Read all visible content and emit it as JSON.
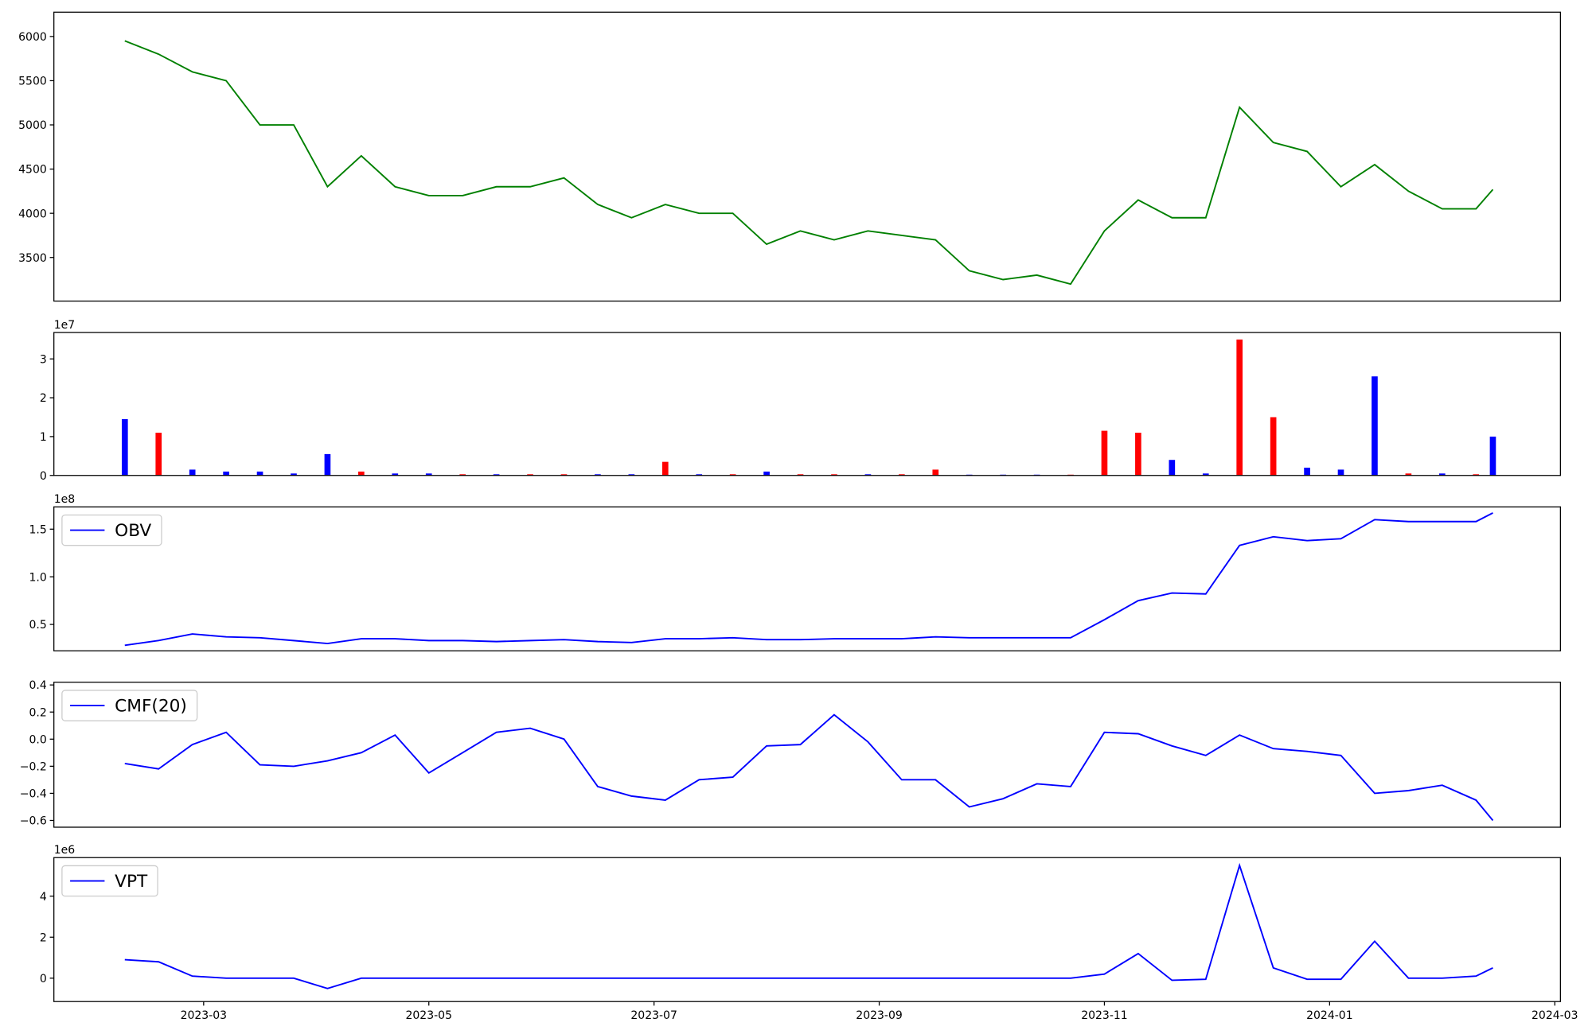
{
  "chart_data": [
    {
      "type": "line",
      "x": [
        -0.7,
        -0.4,
        -0.1,
        0.2,
        0.5,
        0.8,
        1.1,
        1.4,
        1.7,
        2.0,
        2.3,
        2.6,
        2.9,
        3.2,
        3.5,
        3.8,
        4.1,
        4.4,
        4.7,
        5.0,
        5.3,
        5.6,
        5.9,
        6.2,
        6.5,
        6.8,
        7.1,
        7.4,
        7.7,
        8.0,
        8.3,
        8.6,
        8.9,
        9.2,
        9.5,
        9.8,
        10.1,
        10.4,
        10.7,
        11.0,
        11.3,
        11.45
      ],
      "xlim": [
        -1.33,
        12.05
      ],
      "ylim": [
        3007,
        6275
      ],
      "yticks": [
        3500,
        4000,
        4500,
        5000,
        5500,
        6000
      ],
      "series": [
        {
          "color": "#008000",
          "values": [
            5950,
            5800,
            5600,
            5500,
            5000,
            5000,
            4300,
            4650,
            4300,
            4200,
            4200,
            4300,
            4300,
            4400,
            4100,
            3950,
            4100,
            4000,
            4000,
            3650,
            3800,
            3700,
            3800,
            3750,
            3700,
            3350,
            3250,
            3300,
            3200,
            3800,
            4150,
            3950,
            3950,
            5200,
            4800,
            4700,
            4300,
            4550,
            4250,
            4050,
            4050,
            4270
          ]
        }
      ]
    },
    {
      "type": "bar",
      "x": [
        -0.7,
        -0.4,
        -0.1,
        0.2,
        0.5,
        0.8,
        1.1,
        1.4,
        1.7,
        2.0,
        2.3,
        2.6,
        2.9,
        3.2,
        3.5,
        3.8,
        4.1,
        4.4,
        4.7,
        5.0,
        5.3,
        5.6,
        5.9,
        6.2,
        6.5,
        6.8,
        7.1,
        7.4,
        7.7,
        8.0,
        8.3,
        8.6,
        8.9,
        9.2,
        9.5,
        9.8,
        10.1,
        10.4,
        10.7,
        11.0,
        11.3,
        11.45
      ],
      "xlim": [
        -1.33,
        12.05
      ],
      "ylim": [
        0,
        36800000
      ],
      "y_offset_label": "1e7",
      "yticks": [
        0,
        {
          "value": 10000000,
          "label": "1"
        },
        {
          "value": 20000000,
          "label": "2"
        },
        {
          "value": 30000000,
          "label": "3"
        }
      ],
      "values": [
        14500000,
        11000000,
        1500000,
        1000000,
        1000000,
        500000,
        5500000,
        1000000,
        500000,
        500000,
        300000,
        300000,
        300000,
        300000,
        300000,
        300000,
        3500000,
        300000,
        300000,
        1000000,
        300000,
        300000,
        300000,
        300000,
        1500000,
        200000,
        200000,
        200000,
        200000,
        11500000,
        11000000,
        4000000,
        500000,
        35000000,
        15000000,
        2000000,
        1500000,
        25500000,
        500000,
        500000,
        300000,
        10000000
      ],
      "colors": [
        "#0000ff",
        "#ff0000",
        "#0000ff",
        "#0000ff",
        "#0000ff",
        "#0000ff",
        "#0000ff",
        "#ff0000",
        "#0000ff",
        "#0000ff",
        "#ff0000",
        "#0000ff",
        "#ff0000",
        "#ff0000",
        "#0000ff",
        "#0000ff",
        "#ff0000",
        "#0000ff",
        "#ff0000",
        "#0000ff",
        "#ff0000",
        "#ff0000",
        "#0000ff",
        "#ff0000",
        "#ff0000",
        "#0000ff",
        "#0000ff",
        "#0000ff",
        "#ff0000",
        "#ff0000",
        "#ff0000",
        "#0000ff",
        "#0000ff",
        "#ff0000",
        "#ff0000",
        "#0000ff",
        "#0000ff",
        "#0000ff",
        "#ff0000",
        "#0000ff",
        "#ff0000",
        "#0000ff"
      ]
    },
    {
      "type": "line",
      "x": [
        -0.7,
        -0.4,
        -0.1,
        0.2,
        0.5,
        0.8,
        1.1,
        1.4,
        1.7,
        2.0,
        2.3,
        2.6,
        2.9,
        3.2,
        3.5,
        3.8,
        4.1,
        4.4,
        4.7,
        5.0,
        5.3,
        5.6,
        5.9,
        6.2,
        6.5,
        6.8,
        7.1,
        7.4,
        7.7,
        8.0,
        8.3,
        8.6,
        8.9,
        9.2,
        9.5,
        9.8,
        10.1,
        10.4,
        10.7,
        11.0,
        11.3,
        11.45
      ],
      "xlim": [
        -1.33,
        12.05
      ],
      "ylim": [
        22300000,
        173400000
      ],
      "y_offset_label": "1e8",
      "yticks": [
        {
          "value": 50000000,
          "label": "0.5"
        },
        {
          "value": 100000000,
          "label": "1.0"
        },
        {
          "value": 150000000,
          "label": "1.5"
        }
      ],
      "series": [
        {
          "name": "OBV",
          "color": "#0000ff",
          "values": [
            28000000,
            33000000,
            40000000,
            37000000,
            36000000,
            33000000,
            30000000,
            35000000,
            35000000,
            33000000,
            33000000,
            32000000,
            33000000,
            34000000,
            32000000,
            31000000,
            35000000,
            35000000,
            36000000,
            34000000,
            34000000,
            35000000,
            35000000,
            35000000,
            37000000,
            36000000,
            36000000,
            36000000,
            36000000,
            55000000,
            75000000,
            83000000,
            82000000,
            133000000,
            142000000,
            138000000,
            140000000,
            160000000,
            158000000,
            158000000,
            158000000,
            167000000
          ]
        }
      ]
    },
    {
      "type": "line",
      "x": [
        -0.7,
        -0.4,
        -0.1,
        0.2,
        0.5,
        0.8,
        1.1,
        1.4,
        1.7,
        2.0,
        2.3,
        2.6,
        2.9,
        3.2,
        3.5,
        3.8,
        4.1,
        4.4,
        4.7,
        5.0,
        5.3,
        5.6,
        5.9,
        6.2,
        6.5,
        6.8,
        7.1,
        7.4,
        7.7,
        8.0,
        8.3,
        8.6,
        8.9,
        9.2,
        9.5,
        9.8,
        10.1,
        10.4,
        10.7,
        11.0,
        11.3,
        11.45
      ],
      "xlim": [
        -1.33,
        12.05
      ],
      "ylim": [
        -0.65,
        0.42
      ],
      "yticks": [
        {
          "value": -0.6,
          "label": "−0.6"
        },
        {
          "value": -0.4,
          "label": "−0.4"
        },
        {
          "value": -0.2,
          "label": "−0.2"
        },
        {
          "value": 0,
          "label": "0.0"
        },
        0.2,
        0.4
      ],
      "series": [
        {
          "name": "CMF(20)",
          "color": "#0000ff",
          "values": [
            -0.18,
            -0.22,
            -0.04,
            0.05,
            -0.19,
            -0.2,
            -0.16,
            -0.1,
            0.03,
            -0.25,
            -0.1,
            0.05,
            0.08,
            0.0,
            -0.35,
            -0.42,
            -0.45,
            -0.3,
            -0.28,
            -0.05,
            -0.04,
            0.18,
            -0.02,
            -0.3,
            -0.3,
            -0.5,
            -0.44,
            -0.33,
            -0.35,
            0.05,
            0.04,
            -0.05,
            -0.12,
            0.03,
            -0.07,
            -0.09,
            -0.12,
            -0.4,
            -0.38,
            -0.34,
            -0.45,
            -0.6
          ]
        }
      ]
    },
    {
      "type": "line",
      "x": [
        -0.7,
        -0.4,
        -0.1,
        0.2,
        0.5,
        0.8,
        1.1,
        1.4,
        1.7,
        2.0,
        2.3,
        2.6,
        2.9,
        3.2,
        3.5,
        3.8,
        4.1,
        4.4,
        4.7,
        5.0,
        5.3,
        5.6,
        5.9,
        6.2,
        6.5,
        6.8,
        7.1,
        7.4,
        7.7,
        8.0,
        8.3,
        8.6,
        8.9,
        9.2,
        9.5,
        9.8,
        10.1,
        10.4,
        10.7,
        11.0,
        11.3,
        11.45
      ],
      "xlim": [
        -1.33,
        12.05
      ],
      "ylim": [
        -1140000,
        5880000
      ],
      "y_offset_label": "1e6",
      "yticks": [
        0,
        {
          "value": 2000000,
          "label": "2"
        },
        {
          "value": 4000000,
          "label": "4"
        }
      ],
      "xticks": [
        {
          "value": 0,
          "label": "2023-03"
        },
        {
          "value": 2,
          "label": "2023-05"
        },
        {
          "value": 4,
          "label": "2023-07"
        },
        {
          "value": 6,
          "label": "2023-09"
        },
        {
          "value": 8,
          "label": "2023-11"
        },
        {
          "value": 10,
          "label": "2024-01"
        },
        {
          "value": 12,
          "label": "2024-03"
        }
      ],
      "series": [
        {
          "name": "VPT",
          "color": "#0000ff",
          "values": [
            900000,
            800000,
            100000,
            0,
            0,
            0,
            -500000,
            0,
            0,
            0,
            0,
            0,
            0,
            0,
            0,
            0,
            0,
            0,
            0,
            0,
            0,
            0,
            0,
            0,
            0,
            0,
            0,
            0,
            0,
            200000,
            1200000,
            -100000,
            -50000,
            5500000,
            500000,
            -50000,
            -50000,
            1800000,
            0,
            0,
            100000,
            500000
          ]
        }
      ]
    }
  ]
}
